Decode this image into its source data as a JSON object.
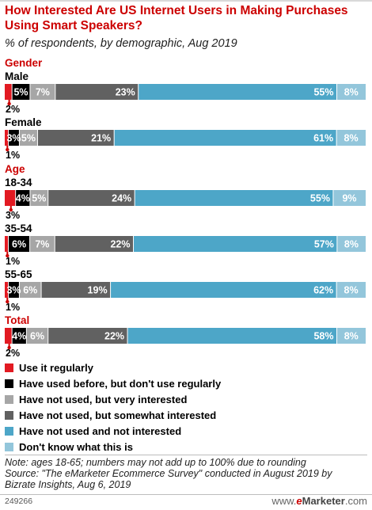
{
  "title": "How Interested Are US Internet Users in Making Purchases Using Smart Speakers?",
  "subtitle": "% of respondents, by demographic, Aug 2019",
  "chart_data": {
    "type": "stacked-bar-horizontal",
    "title": "How Interested Are US Internet Users in Making Purchases Using Smart Speakers?",
    "subtitle": "% of respondents, by demographic, Aug 2019",
    "unit": "%",
    "series": [
      {
        "name": "Use it regularly",
        "color": "#e21a22"
      },
      {
        "name": "Have used before, but don't use regularly",
        "color": "#000000"
      },
      {
        "name": "Have not used, but very interested",
        "color": "#a6a6a6"
      },
      {
        "name": "Have not used, but somewhat interested",
        "color": "#616161"
      },
      {
        "name": "Have not used and not interested",
        "color": "#4da6c8"
      },
      {
        "name": "Don't know what this is",
        "color": "#93c6db"
      }
    ],
    "groups": [
      {
        "name": "Gender",
        "rows": [
          {
            "label": "Male",
            "values": [
              2,
              5,
              7,
              23,
              55,
              8
            ],
            "labels": [
              "2%",
              "5%",
              "7%",
              "23%",
              "55%",
              "8%"
            ]
          },
          {
            "label": "Female",
            "values": [
              1,
              3,
              5,
              21,
              61,
              8
            ],
            "labels": [
              "1%",
              "3%",
              "5%",
              "21%",
              "61%",
              "8%"
            ]
          }
        ]
      },
      {
        "name": "Age",
        "rows": [
          {
            "label": "18-34",
            "values": [
              3,
              4,
              5,
              24,
              55,
              9
            ],
            "labels": [
              "3%",
              "4%",
              "5%",
              "24%",
              "55%",
              "9%"
            ]
          },
          {
            "label": "35-54",
            "values": [
              1,
              6,
              7,
              22,
              57,
              8
            ],
            "labels": [
              "1%",
              "6%",
              "7%",
              "22%",
              "57%",
              "8%"
            ]
          },
          {
            "label": "55-65",
            "values": [
              1,
              3,
              6,
              19,
              62,
              8
            ],
            "labels": [
              "1%",
              "3%",
              "6%",
              "19%",
              "62%",
              "8%"
            ]
          }
        ]
      },
      {
        "name": "",
        "rows": [
          {
            "label": "Total",
            "header_style": true,
            "values": [
              2,
              4,
              6,
              22,
              58,
              8
            ],
            "labels": [
              "2%",
              "4%",
              "6%",
              "22%",
              "58%",
              "8%"
            ]
          }
        ]
      }
    ]
  },
  "legend": [
    {
      "label": "Use it regularly",
      "color": "#e21a22"
    },
    {
      "label": "Have used before, but don't use regularly",
      "color": "#000000"
    },
    {
      "label": "Have not used, but very interested",
      "color": "#a6a6a6"
    },
    {
      "label": "Have not used, but somewhat interested",
      "color": "#616161"
    },
    {
      "label": "Have not used and not interested",
      "color": "#4da6c8"
    },
    {
      "label": "Don't know what this is",
      "color": "#93c6db"
    }
  ],
  "footnote": {
    "note": "Note: ages 18-65; numbers may not add up to 100% due to rounding",
    "source_line1": "Source: \"The eMarketer Ecommerce Survey\" conducted in August 2019 by",
    "source_line2": "Bizrate Insights, Aug 6, 2019"
  },
  "footer": {
    "id": "249266",
    "brand_prefix": "www.",
    "brand_e": "e",
    "brand_main": "Marketer",
    "brand_suffix": ".com"
  },
  "colors": {
    "accent": "#cc0000"
  }
}
